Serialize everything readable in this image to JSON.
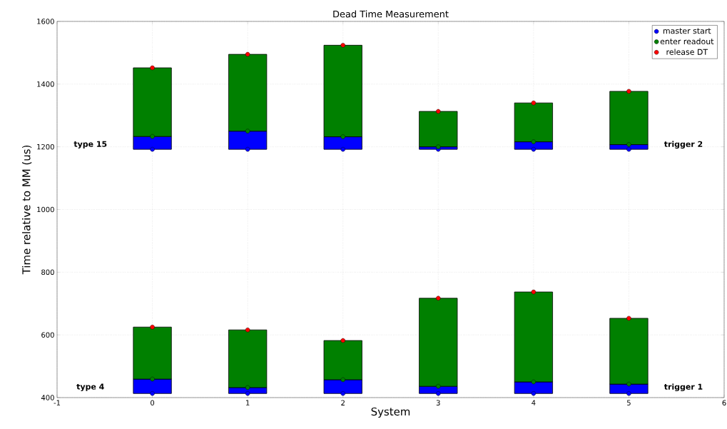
{
  "chart_data": {
    "type": "bar",
    "title": "Dead Time Measurement",
    "xlabel": "System",
    "ylabel": "Time relative to MM (us)",
    "series": [
      {
        "color": "#0000ff",
        "x": [
          0,
          1,
          2,
          3,
          4,
          5
        ],
        "base": [
          413,
          413,
          413,
          413,
          413,
          413
        ],
        "values": [
          46,
          19,
          44,
          23,
          37,
          30
        ]
      },
      {
        "color": "#008000",
        "x": [
          0,
          1,
          2,
          3,
          4,
          5
        ],
        "base": [
          459,
          432,
          457,
          436,
          450,
          443
        ],
        "values": [
          166,
          184,
          125,
          281,
          287,
          210
        ]
      },
      {
        "color": "#0000ff",
        "x": [
          0,
          1,
          2,
          3,
          4,
          5
        ],
        "base": [
          1192,
          1192,
          1192,
          1192,
          1192,
          1192
        ],
        "values": [
          41,
          58,
          40,
          8,
          24,
          15
        ]
      },
      {
        "color": "#008000",
        "x": [
          0,
          1,
          2,
          3,
          4,
          5
        ],
        "base": [
          1233,
          1250,
          1232,
          1200,
          1216,
          1207
        ],
        "values": [
          219,
          245,
          292,
          113,
          124,
          170
        ]
      },
      {
        "type": "scatter",
        "name": "master start",
        "color": "#0000ff",
        "x": [
          0,
          0,
          1,
          1,
          2,
          2,
          3,
          3,
          4,
          4,
          5,
          5
        ],
        "values": [
          413,
          1192,
          413,
          1192,
          413,
          1192,
          413,
          1192,
          413,
          1192,
          413,
          1192
        ]
      },
      {
        "type": "scatter",
        "name": "enter readout",
        "color": "#008000",
        "x": [
          0,
          0,
          1,
          1,
          2,
          2,
          3,
          3,
          4,
          4,
          5,
          5
        ],
        "values": [
          459,
          1233,
          432,
          1250,
          457,
          1232,
          436,
          1200,
          450,
          1216,
          443,
          1207
        ]
      },
      {
        "type": "scatter",
        "name": "release DT",
        "color": "#ff0000",
        "x": [
          0,
          0,
          1,
          1,
          2,
          2,
          3,
          3,
          4,
          4,
          5,
          5
        ],
        "values": [
          625,
          1452,
          616,
          1495,
          582,
          1524,
          717,
          1313,
          737,
          1340,
          653,
          1377
        ]
      }
    ],
    "xlim": [
      -1,
      6
    ],
    "xticks": [
      -1,
      0,
      1,
      2,
      3,
      4,
      5,
      6
    ],
    "ylim": [
      400,
      1600
    ],
    "yticks": [
      400,
      600,
      800,
      1000,
      1200,
      1400,
      1600
    ],
    "annotations": [
      "type 15",
      "trigger 2",
      "type 4",
      "trigger 1"
    ],
    "grid": true,
    "legend": "top right"
  }
}
